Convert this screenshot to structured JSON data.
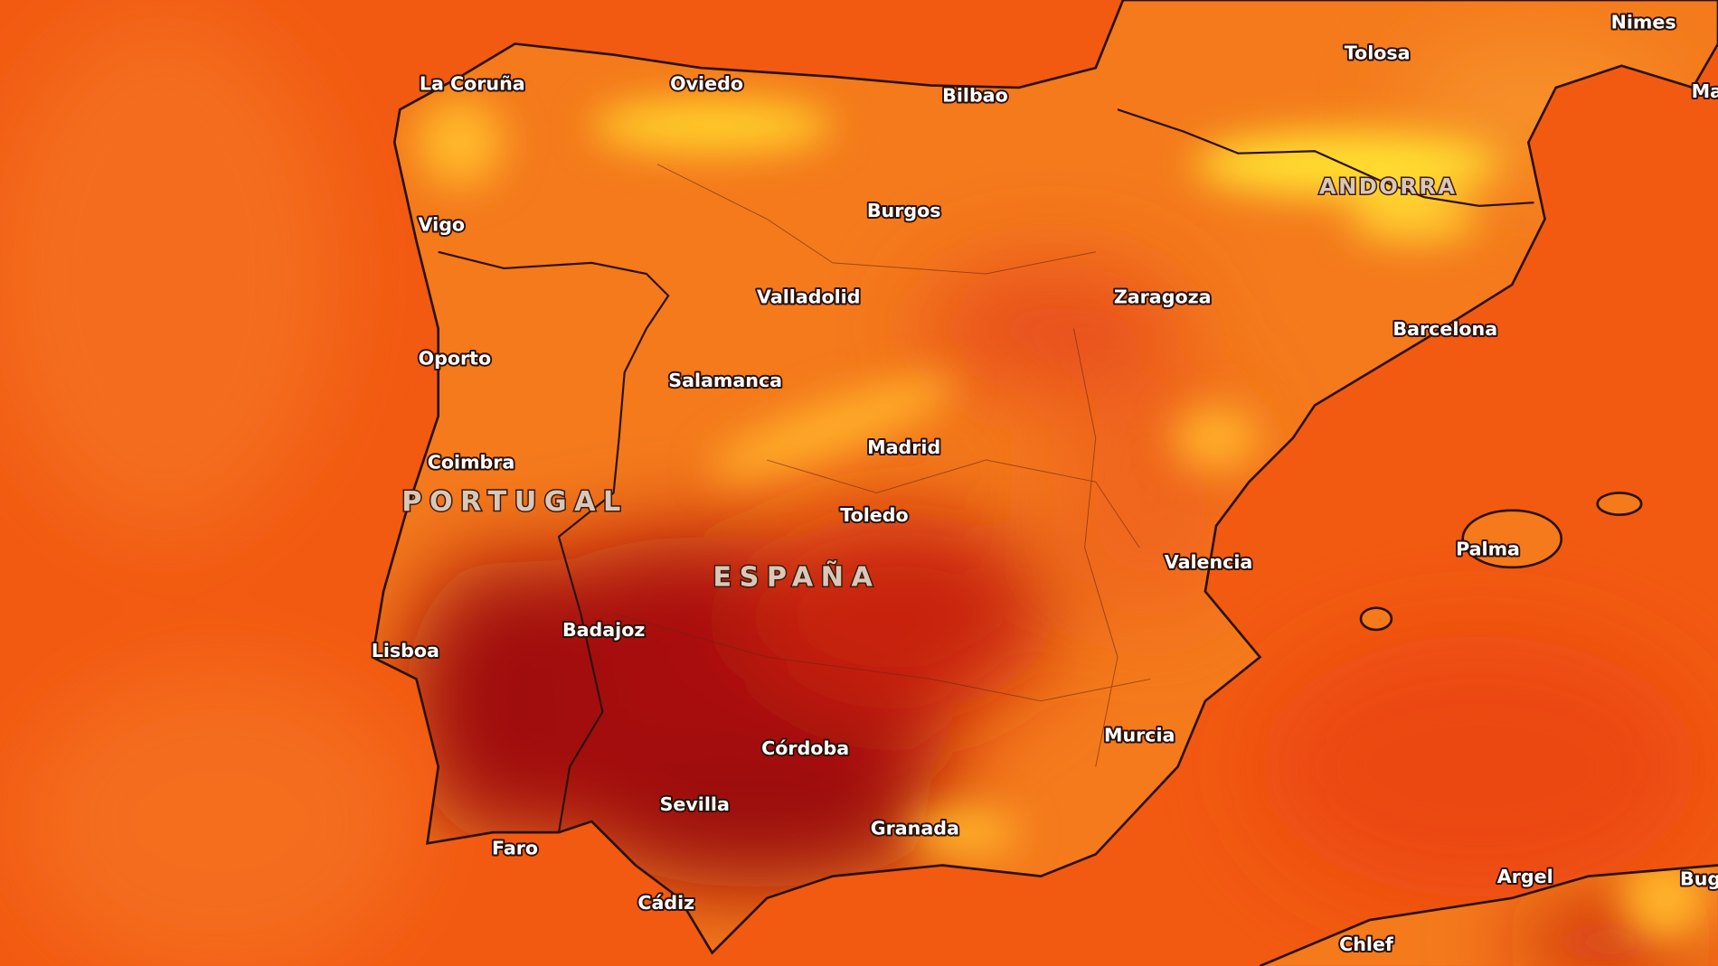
{
  "map": {
    "colors": {
      "sea": "#f25a12",
      "land_base": "#f47a1c",
      "hot": "#a8100e",
      "cool": "#ffd12a",
      "coastline": "#2a1208"
    },
    "countries": [
      {
        "name": "PORTUGAL"
      },
      {
        "name": "ESPAÑA"
      },
      {
        "name": "ANDORRA"
      }
    ],
    "cities": [
      {
        "name": "La Coruña"
      },
      {
        "name": "Oviedo"
      },
      {
        "name": "Bilbao"
      },
      {
        "name": "Tolosa"
      },
      {
        "name": "Nimes"
      },
      {
        "name": "Ma"
      },
      {
        "name": "Vigo"
      },
      {
        "name": "Burgos"
      },
      {
        "name": "Valladolid"
      },
      {
        "name": "Zaragoza"
      },
      {
        "name": "Barcelona"
      },
      {
        "name": "Oporto"
      },
      {
        "name": "Salamanca"
      },
      {
        "name": "Madrid"
      },
      {
        "name": "Coimbra"
      },
      {
        "name": "Toledo"
      },
      {
        "name": "Valencia"
      },
      {
        "name": "Palma"
      },
      {
        "name": "Badajoz"
      },
      {
        "name": "Lisboa"
      },
      {
        "name": "Córdoba"
      },
      {
        "name": "Murcia"
      },
      {
        "name": "Sevilla"
      },
      {
        "name": "Granada"
      },
      {
        "name": "Faro"
      },
      {
        "name": "Cádiz"
      },
      {
        "name": "Argel"
      },
      {
        "name": "Bug"
      },
      {
        "name": "Chlef"
      }
    ]
  }
}
